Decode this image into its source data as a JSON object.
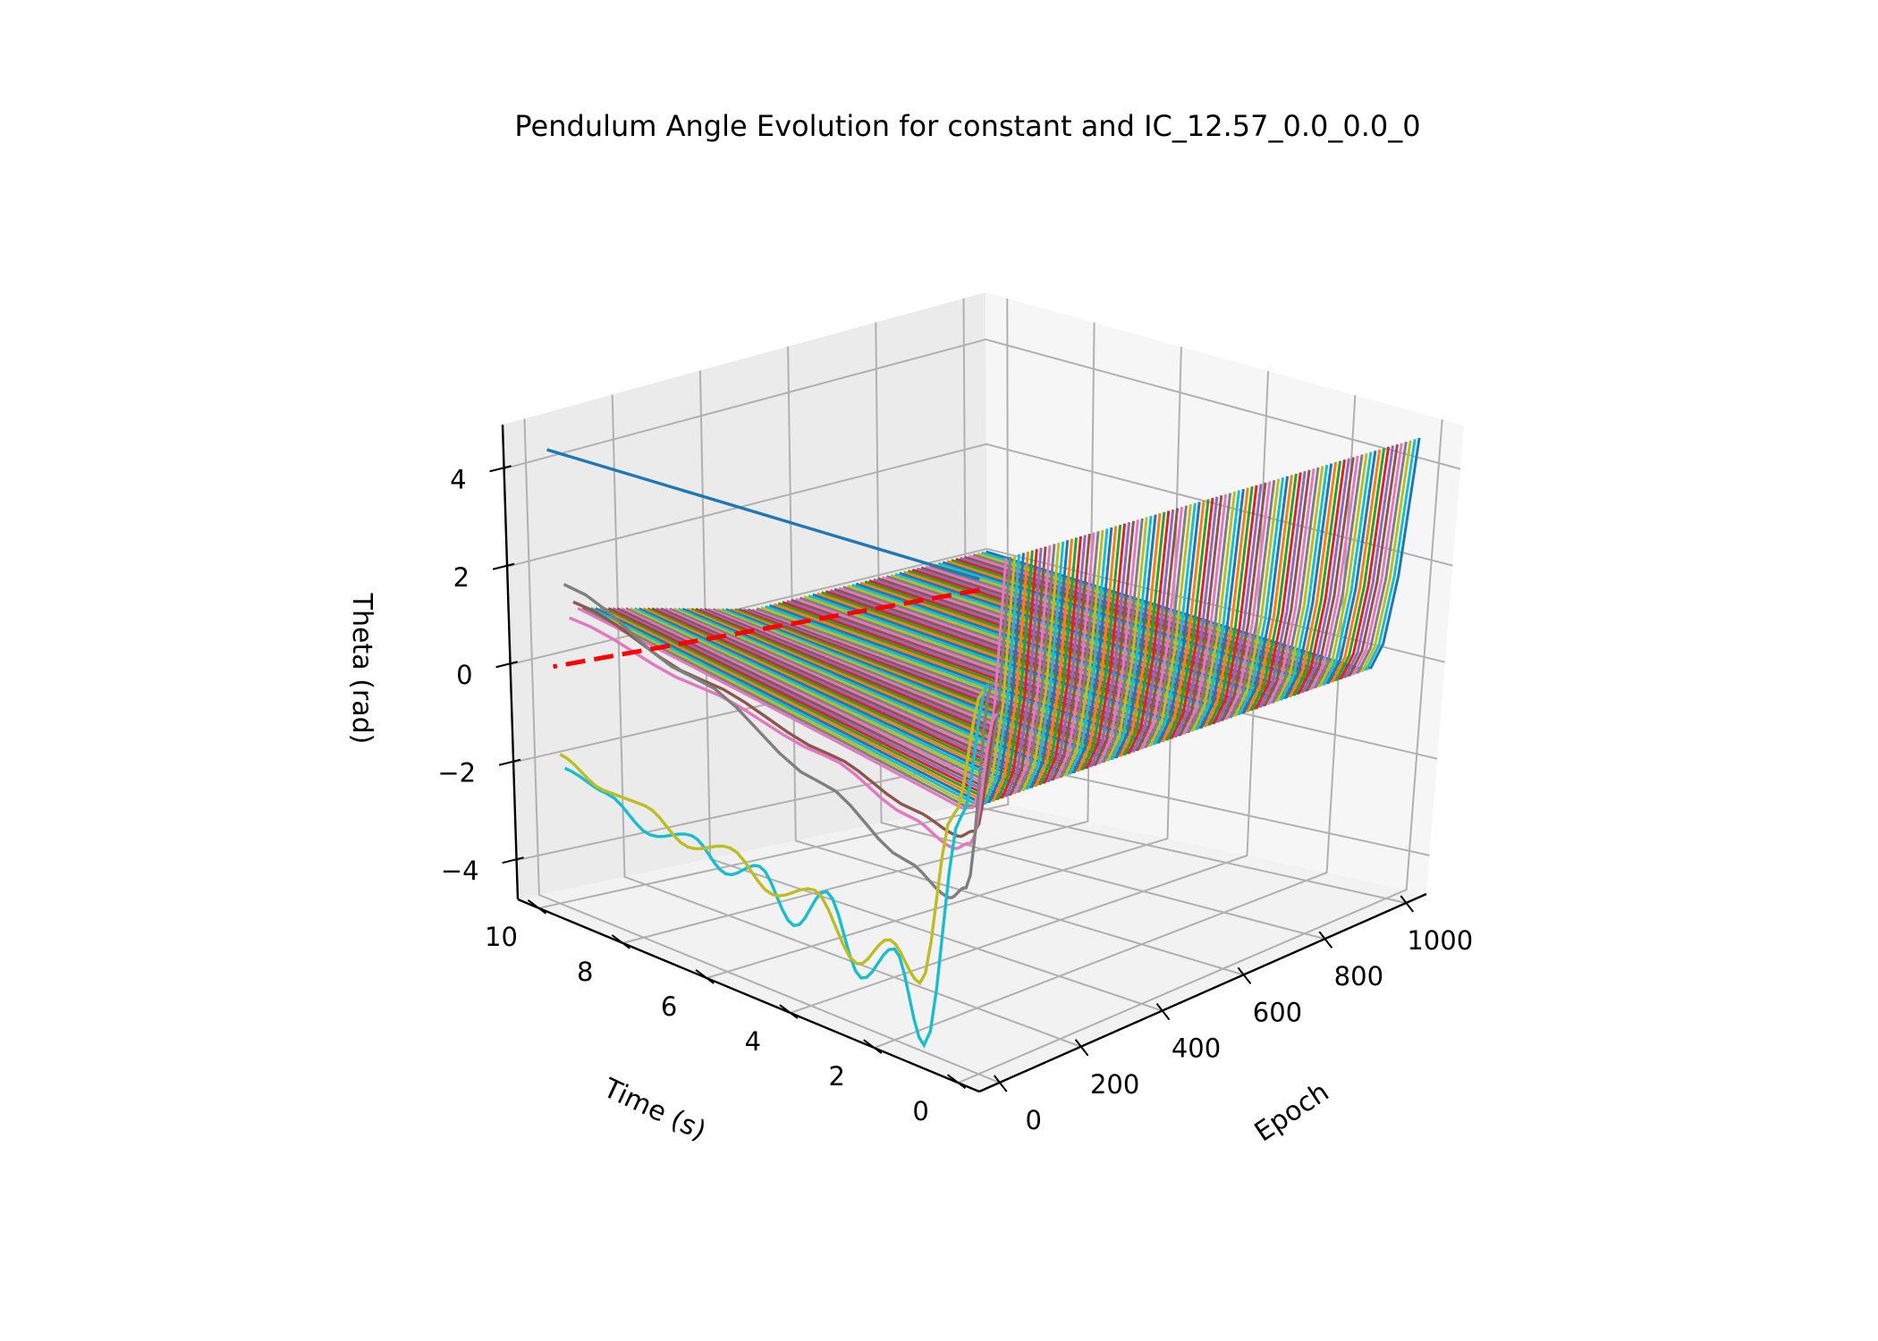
{
  "chart_data": {
    "type": "line3d",
    "title": "Pendulum Angle Evolution for constant and IC_12.57_0.0_0.0_0",
    "xlabel": "Epoch",
    "ylabel": "Time (s)",
    "zlabel": "Theta (rad)",
    "x_ticks": [
      "0",
      "200",
      "400",
      "600",
      "800",
      "1000"
    ],
    "y_ticks": [
      "0",
      "2",
      "4",
      "6",
      "8",
      "10"
    ],
    "z_ticks": [
      "−4",
      "−2",
      "0",
      "2",
      "4"
    ],
    "xlim": [
      -50,
      1050
    ],
    "ylim": [
      -0.5,
      10.5
    ],
    "zlim": [
      -4.8,
      4.9
    ],
    "grid": true,
    "series_description": "One trajectory of theta vs time for each training epoch (every 10 epochs, 0-1000); late epochs converge to a curve rising from about -0.3 to 4.7 rad; the dashed red line is the target trajectory.",
    "target": {
      "epoch": 0,
      "time": [
        0,
        10
      ],
      "theta": [
        4.2,
        0.0
      ]
    },
    "highlight_series": [
      {
        "epoch": 0,
        "color": "#1f77b4",
        "time": [
          0,
          10
        ],
        "theta": [
          4.4,
          4.4
        ]
      },
      {
        "epoch": 10,
        "color": "#bcbd22",
        "time": [
          0,
          0.7,
          1.5,
          2.2,
          3.0,
          4.0,
          5.0,
          6.0,
          7.0,
          8.0,
          9.0,
          10.0
        ],
        "theta": [
          2.3,
          -0.2,
          -3.6,
          -3.0,
          -3.7,
          -2.6,
          -3.0,
          -2.4,
          -2.7,
          -2.2,
          -2.2,
          -1.8
        ]
      },
      {
        "epoch": 20,
        "color": "#17becf",
        "time": [
          0,
          0.6,
          1.5,
          2.2,
          3.0,
          3.8,
          4.6,
          5.4,
          6.2,
          7.0,
          8.0,
          9.0,
          10.0
        ],
        "theta": [
          2.4,
          -0.2,
          -4.8,
          -3.2,
          -4.0,
          -2.6,
          -3.5,
          -2.6,
          -3.0,
          -2.5,
          -2.8,
          -2.3,
          -2.1
        ]
      },
      {
        "epoch": 30,
        "color": "#7f7f7f",
        "time": [
          0,
          0.6,
          1.0,
          2.0,
          4.0,
          7.0,
          10.0
        ],
        "theta": [
          2.4,
          -1.6,
          -1.9,
          -1.5,
          -0.6,
          0.6,
          1.6
        ]
      },
      {
        "epoch": 40,
        "color": "#e377c2",
        "time": [
          0,
          0.6,
          1.0,
          2.0,
          4.0,
          7.0,
          10.0
        ],
        "theta": [
          1.8,
          -0.8,
          -1.0,
          -0.7,
          -0.1,
          0.4,
          0.9
        ]
      },
      {
        "epoch": 50,
        "color": "#8c564b",
        "time": [
          0,
          0.6,
          1.0,
          2.0,
          4.0,
          7.0,
          10.0
        ],
        "theta": [
          2.0,
          -0.6,
          -0.8,
          -0.6,
          -0.1,
          0.5,
          1.2
        ]
      }
    ]
  }
}
